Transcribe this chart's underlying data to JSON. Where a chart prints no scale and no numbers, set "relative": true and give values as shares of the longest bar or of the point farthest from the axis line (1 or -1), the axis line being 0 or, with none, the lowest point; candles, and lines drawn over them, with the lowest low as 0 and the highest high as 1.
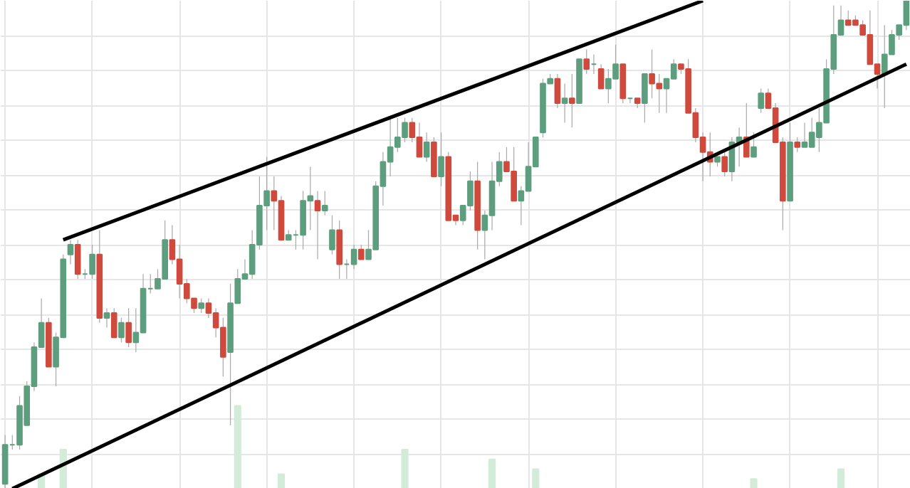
{
  "chart_data": {
    "type": "candlestick",
    "relative": true,
    "grid": true,
    "colors": [
      "#5c9e7e",
      "#5c9e7e",
      "#5c9e7e",
      "#5c9e7e",
      "#5c9e7e",
      "#5c9e7e",
      "#cf4a3d",
      "#5c9e7e",
      "#5c9e7e",
      "#5c9e7e",
      "#cf4a3d",
      "#5c9e7e",
      "#5c9e7e",
      "#cf4a3d",
      "#5c9e7e",
      "#cf4a3d",
      "#5c9e7e",
      "#cf4a3d",
      "#5c9e7e",
      "#5c9e7e",
      "#5c9e7e",
      "#5c9e7e",
      "#5c9e7e",
      "#cf4a3d",
      "#cf4a3d",
      "#cf4a3d",
      "#cf4a3d",
      "#5c9e7e",
      "#cf4a3d",
      "#cf4a3d",
      "#cf4a3d",
      "#5c9e7e",
      "#5c9e7e",
      "#5c9e7e",
      "#5c9e7e",
      "#5c9e7e",
      "#5c9e7e",
      "#cf4a3d",
      "#cf4a3d",
      "#5c9e7e",
      "#5c9e7e",
      "#5c9e7e",
      "#5c9e7e",
      "#cf4a3d",
      "#5c9e7e",
      "#5c9e7e",
      "#cf4a3d",
      "#5c9e7e",
      "#5c9e7e",
      "#cf4a3d",
      "#5c9e7e",
      "#5c9e7e",
      "#5c9e7e",
      "#5c9e7e",
      "#5c9e7e",
      "#5c9e7e",
      "#cf4a3d",
      "#cf4a3d",
      "#5c9e7e",
      "#cf4a3d",
      "#5c9e7e",
      "#cf4a3d",
      "#cf4a3d",
      "#5c9e7e",
      "#5c9e7e",
      "#cf4a3d",
      "#5c9e7e",
      "#5c9e7e",
      "#5c9e7e",
      "#cf4a3d",
      "#cf4a3d",
      "#5c9e7e",
      "#5c9e7e",
      "#5c9e7e",
      "#5c9e7e",
      "#5c9e7e",
      "#cf4a3d",
      "#5c9e7e",
      "#cf4a3d",
      "#5c9e7e",
      "#cf4a3d",
      "#5c9e7e",
      "#cf4a3d",
      "#5c9e7e",
      "#5c9e7e",
      "#cf4a3d",
      "#5c9e7e",
      "#cf4a3d",
      "#5c9e7e",
      "#cf4a3d",
      "#cf4a3d",
      "#5c9e7e",
      "#5c9e7e",
      "#cf4a3d",
      "#cf4a3d",
      "#cf4a3d",
      "#cf4a3d",
      "#cf4a3d",
      "#5c9e7e",
      "#cf4a3d",
      "#5c9e7e",
      "#5c9e7e",
      "#cf4a3d",
      "#5c9e7e",
      "#5c9e7e",
      "#cf4a3d",
      "#cf4a3d",
      "#cf4a3d",
      "#5c9e7e",
      "#cf4a3d",
      "#5c9e7e",
      "#5c9e7e",
      "#5c9e7e",
      "#5c9e7e",
      "#5c9e7e",
      "#5c9e7e",
      "#cf4a3d",
      "#cf4a3d",
      "#cf4a3d",
      "#cf4a3d",
      "#cf4a3d",
      "#5c9e7e",
      "#5c9e7e",
      "#5c9e7e",
      "#5c9e7e"
    ],
    "categories": [
      null,
      null,
      null,
      null,
      null,
      null,
      null,
      null,
      null,
      null,
      null,
      null,
      null,
      null,
      null,
      null,
      null,
      null,
      null,
      null,
      null,
      null,
      null,
      null,
      null,
      null,
      null,
      null,
      null,
      null,
      null,
      null,
      null,
      null,
      null,
      null,
      null,
      null,
      null,
      null,
      null,
      null,
      null,
      null,
      null,
      null,
      null,
      null,
      null,
      null,
      null,
      null,
      null,
      null,
      null,
      null,
      null,
      null,
      null,
      null,
      null,
      null,
      null,
      null,
      null,
      null,
      null,
      null,
      null,
      null,
      null,
      null,
      null,
      null,
      null,
      null,
      null,
      null,
      null,
      null,
      null,
      null,
      null,
      null,
      null,
      null,
      null,
      null,
      null,
      null,
      null,
      null,
      null,
      null,
      null,
      null,
      null,
      null,
      null,
      null,
      null,
      null,
      null,
      null,
      null,
      null,
      null,
      null,
      null,
      null,
      null,
      null,
      null,
      null,
      null,
      null,
      null,
      null,
      null,
      null,
      null,
      null,
      null,
      null,
      null
    ],
    "ohlc": [
      [
        0.01,
        0.11,
        0,
        0.09
      ],
      [
        0.09,
        0.11,
        0.08,
        0.09
      ],
      [
        0.09,
        0.19,
        0.08,
        0.17
      ],
      [
        0.13,
        0.22,
        0.13,
        0.21
      ],
      [
        0.21,
        0.3,
        0.2,
        0.29
      ],
      [
        0.29,
        0.39,
        0.29,
        0.34
      ],
      [
        0.34,
        0.35,
        0.25,
        0.25
      ],
      [
        0.25,
        0.32,
        0.21,
        0.31
      ],
      [
        0.31,
        0.48,
        0.31,
        0.47
      ],
      [
        0.48,
        0.51,
        0.46,
        0.5
      ],
      [
        0.5,
        0.51,
        0.43,
        0.44
      ],
      [
        0.44,
        0.45,
        0.43,
        0.44
      ],
      [
        0.44,
        0.5,
        0.43,
        0.48
      ],
      [
        0.48,
        0.53,
        0.34,
        0.35
      ],
      [
        0.35,
        0.37,
        0.33,
        0.36
      ],
      [
        0.36,
        0.37,
        0.31,
        0.31
      ],
      [
        0.31,
        0.35,
        0.3,
        0.34
      ],
      [
        0.34,
        0.37,
        0.29,
        0.3
      ],
      [
        0.3,
        0.37,
        0.28,
        0.32
      ],
      [
        0.32,
        0.44,
        0.32,
        0.41
      ],
      [
        0.41,
        0.44,
        0.4,
        0.41
      ],
      [
        0.41,
        0.45,
        0.41,
        0.43
      ],
      [
        0.43,
        0.55,
        0.43,
        0.51
      ],
      [
        0.51,
        0.54,
        0.46,
        0.47
      ],
      [
        0.47,
        0.5,
        0.39,
        0.42
      ],
      [
        0.42,
        0.43,
        0.38,
        0.39
      ],
      [
        0.39,
        0.39,
        0.36,
        0.37
      ],
      [
        0.37,
        0.39,
        0.36,
        0.38
      ],
      [
        0.38,
        0.39,
        0.35,
        0.36
      ],
      [
        0.36,
        0.37,
        0.31,
        0.33
      ],
      [
        0.33,
        0.35,
        0.23,
        0.27
      ],
      [
        0.28,
        0.42,
        0.13,
        0.38
      ],
      [
        0.38,
        0.45,
        0.38,
        0.43
      ],
      [
        0.43,
        0.47,
        0.43,
        0.44
      ],
      [
        0.44,
        0.53,
        0.43,
        0.5
      ],
      [
        0.5,
        0.64,
        0.49,
        0.58
      ],
      [
        0.58,
        0.68,
        0.53,
        0.61
      ],
      [
        0.61,
        0.64,
        0.53,
        0.59
      ],
      [
        0.59,
        0.6,
        0.51,
        0.51
      ],
      [
        0.51,
        0.53,
        0.51,
        0.52
      ],
      [
        0.52,
        0.53,
        0.49,
        0.52
      ],
      [
        0.52,
        0.61,
        0.49,
        0.59
      ],
      [
        0.59,
        0.66,
        0.53,
        0.6
      ],
      [
        0.59,
        0.61,
        0.47,
        0.57
      ],
      [
        0.57,
        0.61,
        0.56,
        0.58
      ],
      [
        0.49,
        0.56,
        0.48,
        0.53
      ],
      [
        0.53,
        0.55,
        0.43,
        0.46
      ],
      [
        0.46,
        0.47,
        0.43,
        0.46
      ],
      [
        0.46,
        0.5,
        0.45,
        0.49
      ],
      [
        0.49,
        0.5,
        0.47,
        0.47
      ],
      [
        0.47,
        0.53,
        0.47,
        0.49
      ],
      [
        0.49,
        0.63,
        0.49,
        0.62
      ],
      [
        0.62,
        0.69,
        0.58,
        0.67
      ],
      [
        0.67,
        0.76,
        0.64,
        0.7
      ],
      [
        0.7,
        0.76,
        0.69,
        0.72
      ],
      [
        0.72,
        0.76,
        0.71,
        0.75
      ],
      [
        0.75,
        0.76,
        0.71,
        0.72
      ],
      [
        0.72,
        0.75,
        0.68,
        0.68
      ],
      [
        0.68,
        0.73,
        0.67,
        0.71
      ],
      [
        0.71,
        0.72,
        0.64,
        0.64
      ],
      [
        0.64,
        0.73,
        0.62,
        0.68
      ],
      [
        0.68,
        0.69,
        0.55,
        0.55
      ],
      [
        0.56,
        0.56,
        0.54,
        0.55
      ],
      [
        0.55,
        0.58,
        0.54,
        0.58
      ],
      [
        0.58,
        0.65,
        0.57,
        0.63
      ],
      [
        0.63,
        0.67,
        0.49,
        0.53
      ],
      [
        0.53,
        0.57,
        0.47,
        0.56
      ],
      [
        0.56,
        0.67,
        0.53,
        0.63
      ],
      [
        0.63,
        0.69,
        0.62,
        0.67
      ],
      [
        0.67,
        0.7,
        0.65,
        0.65
      ],
      [
        0.65,
        0.7,
        0.59,
        0.59
      ],
      [
        0.59,
        0.62,
        0.54,
        0.61
      ],
      [
        0.61,
        0.71,
        0.61,
        0.66
      ],
      [
        0.66,
        0.72,
        0.66,
        0.72
      ],
      [
        0.73,
        0.84,
        0.72,
        0.83
      ],
      [
        0.83,
        0.85,
        0.83,
        0.84
      ],
      [
        0.84,
        0.85,
        0.78,
        0.79
      ],
      [
        0.79,
        0.83,
        0.75,
        0.8
      ],
      [
        0.8,
        0.85,
        0.74,
        0.79
      ],
      [
        0.79,
        0.88,
        0.79,
        0.88
      ],
      [
        0.88,
        0.9,
        0.85,
        0.86
      ],
      [
        0.87,
        0.89,
        0.85,
        0.87
      ],
      [
        0.86,
        0.87,
        0.82,
        0.82
      ],
      [
        0.82,
        0.86,
        0.79,
        0.84
      ],
      [
        0.84,
        0.91,
        0.84,
        0.87
      ],
      [
        0.87,
        0.87,
        0.79,
        0.8
      ],
      [
        0.8,
        0.8,
        0.79,
        0.8
      ],
      [
        0.8,
        0.8,
        0.78,
        0.79
      ],
      [
        0.79,
        0.85,
        0.75,
        0.85
      ],
      [
        0.85,
        0.9,
        0.8,
        0.83
      ],
      [
        0.83,
        0.85,
        0.77,
        0.82
      ],
      [
        0.82,
        0.84,
        0.77,
        0.84
      ],
      [
        0.84,
        0.88,
        0.84,
        0.87
      ],
      [
        0.87,
        0.87,
        0.85,
        0.86
      ],
      [
        0.86,
        0.88,
        0.77,
        0.77
      ],
      [
        0.77,
        0.78,
        0.71,
        0.72
      ],
      [
        0.72,
        0.73,
        0.63,
        0.69
      ],
      [
        0.69,
        0.73,
        0.64,
        0.67
      ],
      [
        0.67,
        0.69,
        0.66,
        0.68
      ],
      [
        0.68,
        0.69,
        0.64,
        0.65
      ],
      [
        0.65,
        0.72,
        0.63,
        0.71
      ],
      [
        0.71,
        0.74,
        0.66,
        0.72
      ],
      [
        0.72,
        0.79,
        0.68,
        0.68
      ],
      [
        0.68,
        0.73,
        0.68,
        0.7
      ],
      [
        0.78,
        0.82,
        0.77,
        0.81
      ],
      [
        0.81,
        0.82,
        0.78,
        0.78
      ],
      [
        0.78,
        0.79,
        0.71,
        0.71
      ],
      [
        0.71,
        0.72,
        0.53,
        0.59
      ],
      [
        0.59,
        0.75,
        0.59,
        0.71
      ],
      [
        0.71,
        0.72,
        0.69,
        0.7
      ],
      [
        0.7,
        0.75,
        0.7,
        0.71
      ],
      [
        0.7,
        0.76,
        0.7,
        0.73
      ],
      [
        0.72,
        0.78,
        0.69,
        0.75
      ],
      [
        0.75,
        0.88,
        0.75,
        0.86
      ],
      [
        0.86,
        0.99,
        0.85,
        0.93
      ],
      [
        0.93,
        0.99,
        0.93,
        0.96
      ],
      [
        0.96,
        0.98,
        0.95,
        0.95
      ],
      [
        0.96,
        0.97,
        0.95,
        0.95
      ],
      [
        0.95,
        0.96,
        0.93,
        0.93
      ],
      [
        0.93,
        0.98,
        0.87,
        0.87
      ],
      [
        0.87,
        0.87,
        0.82,
        0.85
      ],
      [
        0.85,
        0.95,
        0.78,
        0.89
      ],
      [
        0.89,
        0.94,
        0.89,
        0.93
      ],
      [
        0.93,
        0.95,
        0.92,
        0.95
      ],
      [
        0.95,
        1.0,
        0.94,
        1.0
      ]
    ],
    "series": [
      {
        "type": "line",
        "color": "#000000",
        "values": [
          null,
          0,
          null,
          null,
          null,
          null,
          null,
          null,
          null,
          null,
          null,
          null,
          null,
          null,
          null,
          null,
          null,
          null,
          null,
          null,
          null,
          null,
          null,
          null,
          null,
          null,
          null,
          null,
          null,
          null,
          null,
          null,
          null,
          null,
          null,
          null,
          null,
          null,
          null,
          null,
          null,
          null,
          null,
          null,
          null,
          null,
          null,
          null,
          null,
          null,
          null,
          null,
          null,
          null,
          null,
          null,
          null,
          null,
          null,
          null,
          null,
          null,
          null,
          null,
          null,
          null,
          null,
          null,
          null,
          null,
          null,
          null,
          null,
          null,
          null,
          null,
          null,
          null,
          null,
          null,
          null,
          null,
          null,
          null,
          null,
          null,
          null,
          null,
          null,
          null,
          null,
          null,
          null,
          null,
          null,
          null,
          null,
          null,
          null,
          null,
          null,
          null,
          null,
          null,
          null,
          null,
          null,
          null,
          null,
          null,
          null,
          null,
          null,
          null,
          null,
          null,
          null,
          null,
          null,
          null,
          null,
          null,
          null,
          null,
          0.87
        ]
      },
      {
        "type": "line",
        "color": "#000000",
        "values": [
          null,
          null,
          null,
          null,
          null,
          null,
          null,
          null,
          0.51,
          null,
          null,
          null,
          null,
          null,
          null,
          null,
          null,
          null,
          null,
          null,
          null,
          null,
          null,
          null,
          null,
          null,
          null,
          null,
          null,
          null,
          null,
          null,
          null,
          null,
          null,
          null,
          null,
          null,
          null,
          null,
          null,
          null,
          null,
          null,
          null,
          null,
          null,
          null,
          null,
          null,
          null,
          null,
          null,
          null,
          null,
          null,
          null,
          null,
          null,
          null,
          null,
          null,
          null,
          null,
          null,
          null,
          null,
          null,
          null,
          null,
          null,
          null,
          null,
          null,
          null,
          null,
          null,
          null,
          null,
          null,
          null,
          null,
          null,
          null,
          null,
          null,
          null,
          null,
          null,
          null,
          null,
          null,
          null,
          null,
          null,
          null,
          1.0,
          null,
          null,
          null,
          null,
          null,
          null,
          null,
          null,
          null,
          null,
          null,
          null,
          null,
          null,
          null,
          null,
          null,
          null,
          null,
          null,
          null,
          null,
          null,
          null,
          null,
          null,
          null,
          null
        ]
      },
      {
        "type": "bar",
        "color": "#d3ebd9",
        "values": [
          null,
          null,
          null,
          null,
          null,
          0.03,
          null,
          null,
          0.08,
          null,
          null,
          null,
          null,
          null,
          null,
          null,
          null,
          null,
          null,
          null,
          null,
          null,
          null,
          null,
          null,
          null,
          null,
          null,
          null,
          null,
          null,
          null,
          0.17,
          null,
          null,
          null,
          null,
          null,
          0.03,
          null,
          null,
          null,
          null,
          null,
          null,
          null,
          null,
          null,
          null,
          null,
          null,
          null,
          null,
          null,
          null,
          0.08,
          null,
          null,
          null,
          null,
          null,
          null,
          null,
          null,
          null,
          null,
          null,
          0.06,
          null,
          null,
          null,
          null,
          null,
          0.04,
          null,
          null,
          null,
          null,
          null,
          null,
          null,
          null,
          null,
          null,
          null,
          null,
          null,
          null,
          null,
          null,
          null,
          null,
          null,
          null,
          null,
          null,
          null,
          null,
          null,
          null,
          null,
          null,
          null,
          0.02,
          null,
          null,
          null,
          null,
          null,
          null,
          null,
          null,
          null,
          null,
          null,
          0.04,
          null,
          null,
          null,
          null,
          null,
          null,
          null,
          null,
          null
        ]
      }
    ]
  }
}
